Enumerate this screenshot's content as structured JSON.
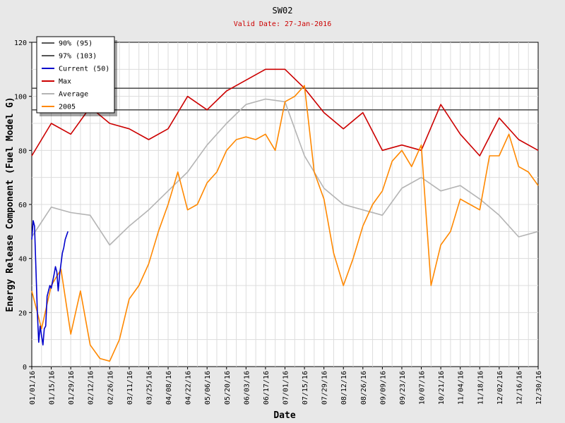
{
  "chart_data": {
    "type": "line",
    "title": "SW02",
    "subtitle": "Valid Date: 27-Jan-2016",
    "xlabel": "Date",
    "ylabel": "Energy Release Component (Fuel Model G)",
    "ylim": [
      0,
      120
    ],
    "yticks": [
      0,
      20,
      40,
      60,
      80,
      100,
      120
    ],
    "grid": true,
    "legend_position": "top-left",
    "x_start": "01/01/16",
    "x_end": "12/30/16",
    "xtick_labels": [
      "01/01/16",
      "01/15/16",
      "01/29/16",
      "02/12/16",
      "02/26/16",
      "03/11/16",
      "03/25/16",
      "04/08/16",
      "04/22/16",
      "05/06/16",
      "05/20/16",
      "06/03/16",
      "06/17/16",
      "07/01/16",
      "07/15/16",
      "07/29/16",
      "08/12/16",
      "08/26/16",
      "09/09/16",
      "09/23/16",
      "10/07/16",
      "10/21/16",
      "11/04/16",
      "11/18/16",
      "12/02/16",
      "12/16/16",
      "12/30/16"
    ],
    "reference_lines": [
      {
        "name": "90% (95)",
        "value": 95,
        "color": "#555555"
      },
      {
        "name": "97% (103)",
        "value": 103,
        "color": "#555555"
      }
    ],
    "series": [
      {
        "name": "Current (50)",
        "color": "#0000cc",
        "x": [
          "01/01/16",
          "01/02/16",
          "01/03/16",
          "01/05/16",
          "01/06/16",
          "01/07/16",
          "01/09/16",
          "01/10/16",
          "01/11/16",
          "01/12/16",
          "01/14/16",
          "01/15/16",
          "01/17/16",
          "01/18/16",
          "01/19/16",
          "01/20/16",
          "01/21/16",
          "01/23/16",
          "01/24/16",
          "01/25/16",
          "01/27/16"
        ],
        "y": [
          47,
          54,
          52,
          20,
          9,
          15,
          8,
          14,
          15,
          26,
          30,
          29,
          34,
          37,
          35,
          28,
          34,
          42,
          44,
          47,
          50
        ]
      },
      {
        "name": "Max",
        "color": "#cc0000",
        "x": [
          "01/01/16",
          "01/15/16",
          "01/29/16",
          "02/12/16",
          "02/26/16",
          "03/11/16",
          "03/25/16",
          "04/08/16",
          "04/22/16",
          "05/06/16",
          "05/20/16",
          "06/03/16",
          "06/17/16",
          "07/01/16",
          "07/15/16",
          "07/29/16",
          "08/12/16",
          "08/26/16",
          "09/09/16",
          "09/23/16",
          "10/07/16",
          "10/21/16",
          "11/04/16",
          "11/18/16",
          "12/02/16",
          "12/16/16",
          "12/30/16"
        ],
        "y": [
          78,
          90,
          86,
          96,
          90,
          88,
          84,
          88,
          100,
          95,
          102,
          106,
          110,
          110,
          103,
          94,
          88,
          94,
          80,
          82,
          80,
          97,
          86,
          78,
          92,
          84,
          80
        ]
      },
      {
        "name": "Average",
        "color": "#b4b4b4",
        "x": [
          "01/01/16",
          "01/15/16",
          "01/29/16",
          "02/12/16",
          "02/26/16",
          "03/11/16",
          "03/25/16",
          "04/08/16",
          "04/22/16",
          "05/06/16",
          "05/20/16",
          "06/03/16",
          "06/17/16",
          "07/01/16",
          "07/15/16",
          "07/29/16",
          "08/12/16",
          "08/26/16",
          "09/09/16",
          "09/23/16",
          "10/07/16",
          "10/21/16",
          "11/04/16",
          "11/18/16",
          "12/02/16",
          "12/16/16",
          "12/30/16"
        ],
        "y": [
          48,
          59,
          57,
          56,
          45,
          52,
          58,
          65,
          72,
          82,
          90,
          97,
          99,
          98,
          78,
          66,
          60,
          58,
          56,
          66,
          70,
          65,
          67,
          62,
          56,
          48,
          50
        ]
      },
      {
        "name": "2005",
        "color": "#ff8800",
        "x": [
          "01/01/16",
          "01/08/16",
          "01/15/16",
          "01/22/16",
          "01/29/16",
          "02/05/16",
          "02/12/16",
          "02/19/16",
          "02/26/16",
          "03/04/16",
          "03/11/16",
          "03/18/16",
          "03/25/16",
          "04/01/16",
          "04/08/16",
          "04/15/16",
          "04/22/16",
          "04/29/16",
          "05/06/16",
          "05/13/16",
          "05/20/16",
          "05/27/16",
          "06/03/16",
          "06/10/16",
          "06/17/16",
          "06/24/16",
          "07/01/16",
          "07/08/16",
          "07/15/16",
          "07/22/16",
          "07/29/16",
          "08/05/16",
          "08/12/16",
          "08/19/16",
          "08/26/16",
          "09/02/16",
          "09/09/16",
          "09/16/16",
          "09/23/16",
          "09/30/16",
          "10/07/16",
          "10/14/16",
          "10/21/16",
          "10/28/16",
          "11/04/16",
          "11/11/16",
          "11/18/16",
          "11/25/16",
          "12/02/16",
          "12/09/16",
          "12/16/16",
          "12/23/16",
          "12/30/16"
        ],
        "y": [
          28,
          14,
          30,
          36,
          12,
          28,
          8,
          3,
          2,
          10,
          25,
          30,
          38,
          50,
          60,
          72,
          58,
          60,
          68,
          72,
          80,
          84,
          85,
          84,
          86,
          80,
          98,
          100,
          104,
          72,
          62,
          42,
          30,
          40,
          52,
          60,
          65,
          76,
          80,
          74,
          82,
          30,
          45,
          50,
          62,
          60,
          58,
          78,
          78,
          86,
          74,
          72,
          67
        ]
      }
    ]
  }
}
